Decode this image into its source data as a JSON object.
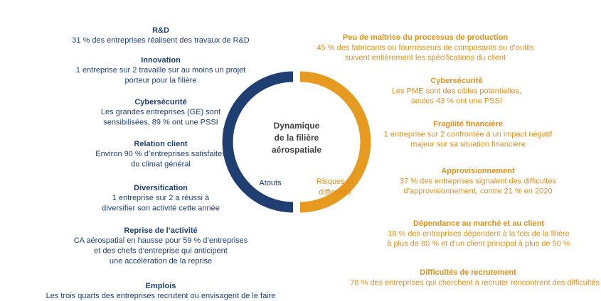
{
  "center": {
    "title": [
      "Dynamique",
      "de la filière",
      "aérospatiale"
    ],
    "left_label": "Atouts",
    "right_label": [
      "Risques et",
      "difficultés"
    ]
  },
  "strengths": [
    {
      "title": "R&D",
      "lines": [
        "31 % des entreprises réalisent des travaux de R&D"
      ]
    },
    {
      "title": "Innovation",
      "lines": [
        "1 entreprise sur 2 travaille sur au moins un projet",
        "porteur pour la filière"
      ]
    },
    {
      "title": "Cybersécurité",
      "lines": [
        "Les grandes entreprises (GE) sont",
        "sensibilisées, 89 % ont une PSSI"
      ]
    },
    {
      "title": "Relation client",
      "lines": [
        "Environ 90 % d’entreprises satisfaites",
        "du climat général"
      ]
    },
    {
      "title": "Diversification",
      "lines": [
        "1 entreprise sur 2 a réussi à",
        "diversifier son activité cette année"
      ]
    },
    {
      "title": "Reprise de l’activité",
      "lines": [
        "CA aérospatial en hausse pour 59 % d’entreprises",
        "et des chefs d’entreprise qui anticipent",
        "une accélération de la reprise"
      ]
    },
    {
      "title": "Emplois",
      "lines": [
        "Les trois quarts des entreprises recrutent ou envisagent de le faire"
      ]
    }
  ],
  "risks": [
    {
      "title": "Peu de maîtrise du processus de production",
      "lines": [
        "45 % des fabricants ou fournisseurs de composants ou d’outils",
        "suivent entièrement les spécifications du client"
      ]
    },
    {
      "title": "Cybersécurité",
      "lines": [
        "Les PME sont des cibles potentielles,",
        "seules 43 % ont une PSSI"
      ]
    },
    {
      "title": "Fragilité financière",
      "lines": [
        "1 entreprise sur 2 confrontée à un impact négatif",
        "majeur sur sa situation financière"
      ]
    },
    {
      "title": "Approvisionnement",
      "lines": [
        "37 % des entreprises signalent des difficultés",
        "d’approvisionnement, contre 21 % en 2020"
      ]
    },
    {
      "title": "Dépendance au marché et au client",
      "lines": [
        "18 % des entreprises dépendent à la fois de la filière",
        "à plus de 80 % et d’un client principal à plus de 50 %"
      ]
    },
    {
      "title": "Difficultés de recrutement",
      "lines": [
        "78 % des entreprises qui cherchent à recruter rencontrent des difficultés"
      ]
    }
  ]
}
